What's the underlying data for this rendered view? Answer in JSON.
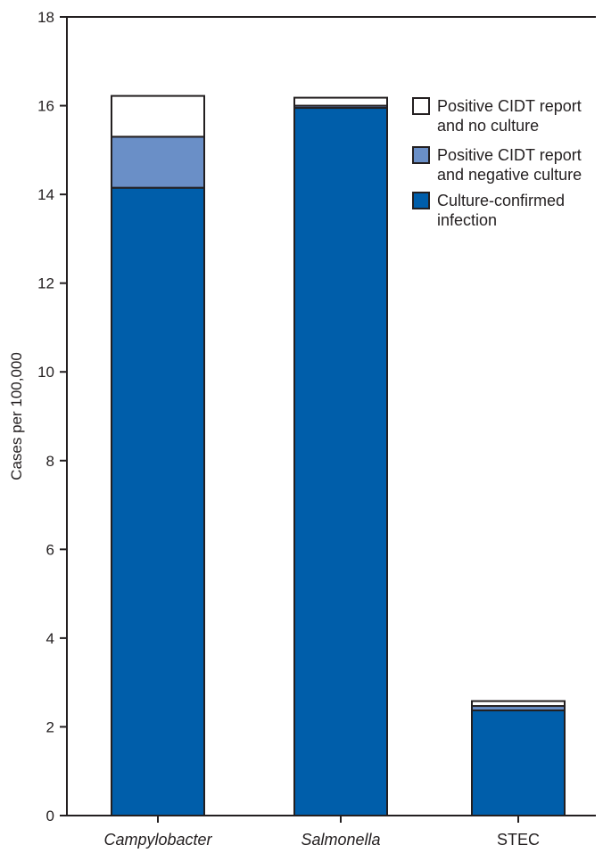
{
  "chart_data": {
    "type": "bar",
    "stacked": true,
    "title": "",
    "xlabel": "",
    "ylabel": "Cases per 100,000",
    "ylim": [
      0,
      18
    ],
    "yticks": [
      0,
      2,
      4,
      6,
      8,
      10,
      12,
      14,
      16,
      18
    ],
    "grid": false,
    "legend_position": "top-right",
    "categories": [
      "Campylobacter",
      "Salmonella",
      "STEC"
    ],
    "category_italic": [
      true,
      true,
      false
    ],
    "series": [
      {
        "name": "Culture-confirmed infection",
        "values": [
          14.15,
          15.95,
          2.37
        ],
        "color": "#005eaa"
      },
      {
        "name": "Positive CIDT report and negative culture",
        "values": [
          1.15,
          0.05,
          0.1
        ],
        "color": "#6a8fc7"
      },
      {
        "name": "Positive CIDT report and no culture",
        "values": [
          0.92,
          0.18,
          0.11
        ],
        "color": "#ffffff"
      }
    ],
    "legend": [
      {
        "series": 0,
        "lines": [
          "Positive CIDT report",
          "and no culture"
        ]
      },
      {
        "series": 1,
        "lines": [
          "Positive CIDT report",
          "and negative culture"
        ]
      },
      {
        "series": 2,
        "lines": [
          "Culture-confirmed",
          "infection"
        ]
      }
    ],
    "legend_series_order": [
      2,
      1,
      0
    ]
  }
}
